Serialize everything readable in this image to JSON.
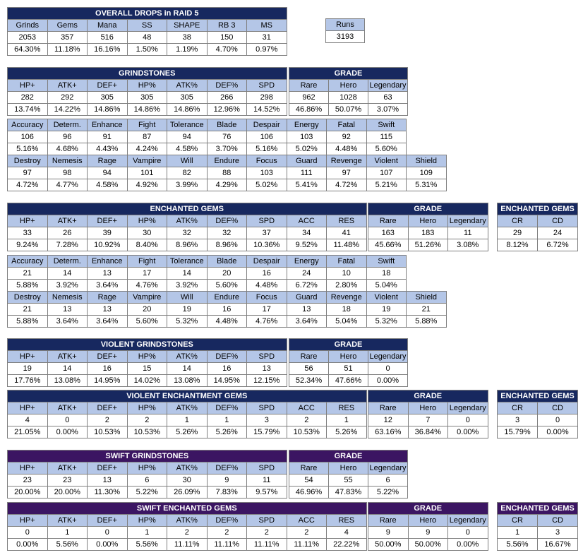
{
  "tables": [
    {
      "key": "overall",
      "title": "OVERALL DROPS in RAID 5",
      "color": "navy",
      "headers": [
        "Grinds",
        "Gems",
        "Mana",
        "SS",
        "SHAPE",
        "RB 3",
        "MS"
      ],
      "rows": [
        [
          "2053",
          "357",
          "516",
          "48",
          "38",
          "150",
          "31"
        ],
        [
          "64.30%",
          "11.18%",
          "16.16%",
          "1.50%",
          "1.19%",
          "4.70%",
          "0.97%"
        ]
      ]
    },
    {
      "key": "runs",
      "title": "",
      "color": "navy",
      "headers": [
        "Runs"
      ],
      "rows": [
        [
          "3193"
        ]
      ]
    },
    {
      "key": "grind_main",
      "title": "GRINDSTONES",
      "color": "navy",
      "headers": [
        "HP+",
        "ATK+",
        "DEF+",
        "HP%",
        "ATK%",
        "DEF%",
        "SPD"
      ],
      "rows": [
        [
          "282",
          "292",
          "305",
          "305",
          "305",
          "266",
          "298"
        ],
        [
          "13.74%",
          "14.22%",
          "14.86%",
          "14.86%",
          "14.86%",
          "12.96%",
          "14.52%"
        ]
      ]
    },
    {
      "key": "grind_grade",
      "title": "GRADE",
      "color": "navy",
      "headers": [
        "Rare",
        "Hero",
        "Legendary"
      ],
      "rows": [
        [
          "962",
          "1028",
          "63"
        ],
        [
          "46.86%",
          "50.07%",
          "3.07%"
        ]
      ]
    },
    {
      "key": "grind_sets1",
      "title": "",
      "color": "navy",
      "headers": [
        "Accuracy",
        "Determ.",
        "Enhance",
        "Fight",
        "Tolerance",
        "Blade",
        "Despair",
        "Energy",
        "Fatal",
        "Swift"
      ],
      "rows": [
        [
          "106",
          "96",
          "91",
          "87",
          "94",
          "76",
          "106",
          "103",
          "92",
          "115"
        ],
        [
          "5.16%",
          "4.68%",
          "4.43%",
          "4.24%",
          "4.58%",
          "3.70%",
          "5.16%",
          "5.02%",
          "4.48%",
          "5.60%"
        ]
      ]
    },
    {
      "key": "grind_sets2",
      "title": "",
      "color": "navy",
      "headers": [
        "Destroy",
        "Nemesis",
        "Rage",
        "Vampire",
        "Will",
        "Endure",
        "Focus",
        "Guard",
        "Revenge",
        "Violent",
        "Shield"
      ],
      "rows": [
        [
          "97",
          "98",
          "94",
          "101",
          "82",
          "88",
          "103",
          "111",
          "97",
          "107",
          "109"
        ],
        [
          "4.72%",
          "4.77%",
          "4.58%",
          "4.92%",
          "3.99%",
          "4.29%",
          "5.02%",
          "5.41%",
          "4.72%",
          "5.21%",
          "5.31%"
        ]
      ]
    },
    {
      "key": "gem_main",
      "title": "ENCHANTED GEMS",
      "color": "navy",
      "headers": [
        "HP+",
        "ATK+",
        "DEF+",
        "HP%",
        "ATK%",
        "DEF%",
        "SPD",
        "ACC",
        "RES"
      ],
      "rows": [
        [
          "33",
          "26",
          "39",
          "30",
          "32",
          "32",
          "37",
          "34",
          "41"
        ],
        [
          "9.24%",
          "7.28%",
          "10.92%",
          "8.40%",
          "8.96%",
          "8.96%",
          "10.36%",
          "9.52%",
          "11.48%"
        ]
      ]
    },
    {
      "key": "gem_grade",
      "title": "GRADE",
      "color": "navy",
      "headers": [
        "Rare",
        "Hero",
        "Legendary"
      ],
      "rows": [
        [
          "163",
          "183",
          "11"
        ],
        [
          "45.66%",
          "51.26%",
          "3.08%"
        ]
      ]
    },
    {
      "key": "gem_crcd",
      "title": "ENCHANTED GEMS",
      "color": "navy",
      "headers": [
        "CR",
        "CD"
      ],
      "rows": [
        [
          "29",
          "24"
        ],
        [
          "8.12%",
          "6.72%"
        ]
      ]
    },
    {
      "key": "gem_sets1",
      "title": "",
      "color": "navy",
      "headers": [
        "Accuracy",
        "Determ.",
        "Enhance",
        "Fight",
        "Tolerance",
        "Blade",
        "Despair",
        "Energy",
        "Fatal",
        "Swift"
      ],
      "rows": [
        [
          "21",
          "14",
          "13",
          "17",
          "14",
          "20",
          "16",
          "24",
          "10",
          "18"
        ],
        [
          "5.88%",
          "3.92%",
          "3.64%",
          "4.76%",
          "3.92%",
          "5.60%",
          "4.48%",
          "6.72%",
          "2.80%",
          "5.04%"
        ]
      ]
    },
    {
      "key": "gem_sets2",
      "title": "",
      "color": "navy",
      "headers": [
        "Destroy",
        "Nemesis",
        "Rage",
        "Vampire",
        "Will",
        "Endure",
        "Focus",
        "Guard",
        "Revenge",
        "Violent",
        "Shield"
      ],
      "rows": [
        [
          "21",
          "13",
          "13",
          "20",
          "19",
          "16",
          "17",
          "13",
          "18",
          "19",
          "21"
        ],
        [
          "5.88%",
          "3.64%",
          "3.64%",
          "5.60%",
          "5.32%",
          "4.48%",
          "4.76%",
          "3.64%",
          "5.04%",
          "5.32%",
          "5.88%"
        ]
      ]
    },
    {
      "key": "vgrind_main",
      "title": "VIOLENT GRINDSTONES",
      "color": "navy",
      "headers": [
        "HP+",
        "ATK+",
        "DEF+",
        "HP%",
        "ATK%",
        "DEF%",
        "SPD"
      ],
      "rows": [
        [
          "19",
          "14",
          "16",
          "15",
          "14",
          "16",
          "13"
        ],
        [
          "17.76%",
          "13.08%",
          "14.95%",
          "14.02%",
          "13.08%",
          "14.95%",
          "12.15%"
        ]
      ]
    },
    {
      "key": "vgrind_grade",
      "title": "GRADE",
      "color": "navy",
      "headers": [
        "Rare",
        "Hero",
        "Legendary"
      ],
      "rows": [
        [
          "56",
          "51",
          "0"
        ],
        [
          "52.34%",
          "47.66%",
          "0.00%"
        ]
      ]
    },
    {
      "key": "vgem_main",
      "title": "VIOLENT ENCHANTMENT GEMS",
      "color": "navy",
      "headers": [
        "HP+",
        "ATK+",
        "DEF+",
        "HP%",
        "ATK%",
        "DEF%",
        "SPD",
        "ACC",
        "RES"
      ],
      "rows": [
        [
          "4",
          "0",
          "2",
          "2",
          "1",
          "1",
          "3",
          "2",
          "1"
        ],
        [
          "21.05%",
          "0.00%",
          "10.53%",
          "10.53%",
          "5.26%",
          "5.26%",
          "15.79%",
          "10.53%",
          "5.26%"
        ]
      ]
    },
    {
      "key": "vgem_grade",
      "title": "GRADE",
      "color": "navy",
      "headers": [
        "Rare",
        "Hero",
        "Legendary"
      ],
      "rows": [
        [
          "12",
          "7",
          "0"
        ],
        [
          "63.16%",
          "36.84%",
          "0.00%"
        ]
      ]
    },
    {
      "key": "vgem_crcd",
      "title": "ENCHANTED GEMS",
      "color": "navy",
      "headers": [
        "CR",
        "CD"
      ],
      "rows": [
        [
          "3",
          "0"
        ],
        [
          "15.79%",
          "0.00%"
        ]
      ]
    },
    {
      "key": "sgrind_main",
      "title": "SWIFT GRINDSTONES",
      "color": "purple",
      "headers": [
        "HP+",
        "ATK+",
        "DEF+",
        "HP%",
        "ATK%",
        "DEF%",
        "SPD"
      ],
      "rows": [
        [
          "23",
          "23",
          "13",
          "6",
          "30",
          "9",
          "11"
        ],
        [
          "20.00%",
          "20.00%",
          "11.30%",
          "5.22%",
          "26.09%",
          "7.83%",
          "9.57%"
        ]
      ]
    },
    {
      "key": "sgrind_grade",
      "title": "GRADE",
      "color": "purple",
      "headers": [
        "Rare",
        "Hero",
        "Legendary"
      ],
      "rows": [
        [
          "54",
          "55",
          "6"
        ],
        [
          "46.96%",
          "47.83%",
          "5.22%"
        ]
      ]
    },
    {
      "key": "sgem_main",
      "title": "SWIFT ENCHANTED GEMS",
      "color": "purple",
      "headers": [
        "HP+",
        "ATK+",
        "DEF+",
        "HP%",
        "ATK%",
        "DEF%",
        "SPD",
        "ACC",
        "RES"
      ],
      "rows": [
        [
          "0",
          "1",
          "0",
          "1",
          "2",
          "2",
          "2",
          "2",
          "4"
        ],
        [
          "0.00%",
          "5.56%",
          "0.00%",
          "5.56%",
          "11.11%",
          "11.11%",
          "11.11%",
          "11.11%",
          "22.22%"
        ]
      ]
    },
    {
      "key": "sgem_grade",
      "title": "GRADE",
      "color": "purple",
      "headers": [
        "Rare",
        "Hero",
        "Legendary"
      ],
      "rows": [
        [
          "9",
          "9",
          "0"
        ],
        [
          "50.00%",
          "50.00%",
          "0.00%"
        ]
      ]
    },
    {
      "key": "sgem_crcd",
      "title": "ENCHANTED GEMS",
      "color": "purple",
      "headers": [
        "CR",
        "CD"
      ],
      "rows": [
        [
          "1",
          "3"
        ],
        [
          "5.56%",
          "16.67%"
        ]
      ]
    }
  ]
}
